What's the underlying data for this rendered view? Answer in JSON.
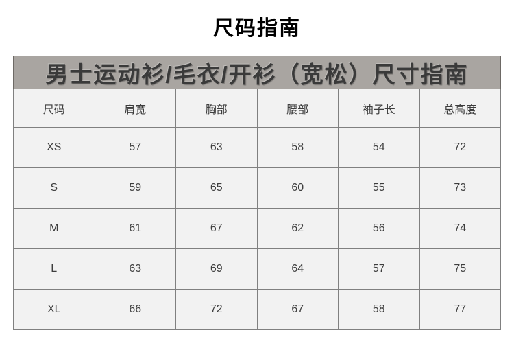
{
  "page": {
    "title": "尺码指南"
  },
  "banner": {
    "title": "男士运动衫/毛衣/开衫（宽松）尺寸指南"
  },
  "size_table": {
    "headers": [
      "尺码",
      "肩宽",
      "胸部",
      "腰部",
      "袖子长",
      "总高度"
    ],
    "rows": [
      [
        "XS",
        "57",
        "63",
        "58",
        "54",
        "72"
      ],
      [
        "S",
        "59",
        "65",
        "60",
        "55",
        "73"
      ],
      [
        "M",
        "61",
        "67",
        "62",
        "56",
        "74"
      ],
      [
        "L",
        "63",
        "69",
        "64",
        "57",
        "75"
      ],
      [
        "XL",
        "66",
        "72",
        "67",
        "58",
        "77"
      ]
    ]
  },
  "colors": {
    "banner_bg": "#a9a5a1",
    "banner_border": "#6d6965",
    "banner_text": "#3a3a3a",
    "cell_bg": "#f2f2f2",
    "cell_border": "#808080",
    "cell_text": "#3d3d3d",
    "title_text": "#000000",
    "page_bg": "#ffffff"
  }
}
